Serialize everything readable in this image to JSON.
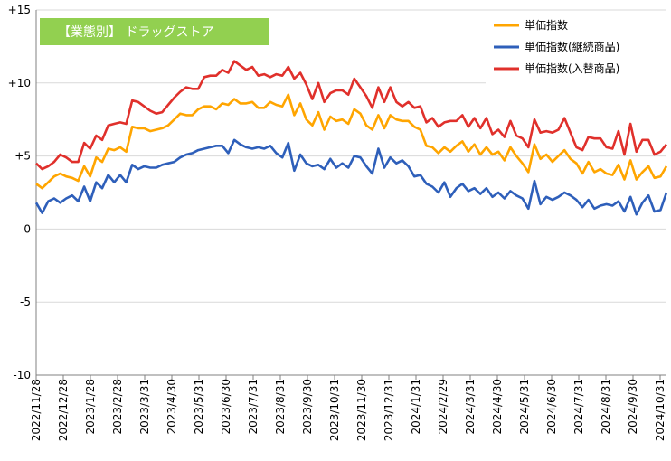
{
  "chart_data": {
    "type": "line",
    "title": "【業態別】 ドラッグストア",
    "title_box_color": "#92d050",
    "ylim": [
      -10,
      15
    ],
    "yticks": [
      -10,
      -5,
      0,
      5,
      10,
      15
    ],
    "ytick_labels": [
      "-10",
      "-5",
      "0",
      "+5",
      "+10",
      "+15"
    ],
    "xtick_labels": [
      "2022/11/28",
      "2022/12/28",
      "2023/1/28",
      "2023/2/28",
      "2023/3/31",
      "2023/4/30",
      "2023/5/31",
      "2023/6/30",
      "2023/7/31",
      "2023/8/31",
      "2023/9/30",
      "2023/10/31",
      "2023/11/30",
      "2023/12/31",
      "2024/1/31",
      "2024/2/29",
      "2024/3/31",
      "2024/4/30",
      "2024/5/31",
      "2024/6/30",
      "2024/7/31",
      "2024/8/31",
      "2024/9/30",
      "2024/10/31"
    ],
    "grid": "horizontal",
    "legend_position": "top-right",
    "series": [
      {
        "name": "単価指数",
        "color": "#ffa500",
        "values": [
          3.1,
          2.8,
          3.2,
          3.6,
          3.8,
          3.6,
          3.5,
          3.3,
          4.3,
          3.6,
          4.9,
          4.6,
          5.5,
          5.4,
          5.6,
          5.3,
          7.0,
          6.9,
          6.9,
          6.7,
          6.8,
          6.9,
          7.1,
          7.5,
          7.9,
          7.8,
          7.8,
          8.2,
          8.4,
          8.4,
          8.2,
          8.6,
          8.5,
          8.9,
          8.6,
          8.6,
          8.7,
          8.3,
          8.3,
          8.7,
          8.5,
          8.4,
          9.2,
          7.8,
          8.6,
          7.5,
          7.1,
          8.0,
          6.8,
          7.7,
          7.4,
          7.5,
          7.2,
          8.2,
          7.9,
          7.1,
          6.8,
          7.8,
          6.9,
          7.8,
          7.5,
          7.4,
          7.4,
          7.0,
          6.8,
          5.7,
          5.6,
          5.2,
          5.6,
          5.3,
          5.7,
          6.0,
          5.3,
          5.8,
          5.1,
          5.6,
          5.1,
          5.3,
          4.7,
          5.6,
          5.0,
          4.5,
          3.9,
          5.8,
          4.8,
          5.1,
          4.6,
          5.0,
          5.4,
          4.8,
          4.5,
          3.8,
          4.6,
          3.9,
          4.1,
          3.8,
          3.7,
          4.4,
          3.4,
          4.7,
          3.4,
          3.9,
          4.3,
          3.5,
          3.6,
          4.3
        ]
      },
      {
        "name": "単価指数(継続商品)",
        "color": "#2e5fba",
        "values": [
          1.8,
          1.1,
          1.9,
          2.1,
          1.8,
          2.1,
          2.3,
          1.9,
          2.9,
          1.9,
          3.2,
          2.8,
          3.7,
          3.2,
          3.7,
          3.2,
          4.4,
          4.1,
          4.3,
          4.2,
          4.2,
          4.4,
          4.5,
          4.6,
          4.9,
          5.1,
          5.2,
          5.4,
          5.5,
          5.6,
          5.7,
          5.7,
          5.2,
          6.1,
          5.8,
          5.6,
          5.5,
          5.6,
          5.5,
          5.7,
          5.2,
          4.9,
          5.9,
          4.0,
          5.1,
          4.5,
          4.3,
          4.4,
          4.1,
          4.8,
          4.2,
          4.5,
          4.2,
          5.0,
          4.9,
          4.3,
          3.8,
          5.5,
          4.2,
          4.9,
          4.5,
          4.7,
          4.3,
          3.6,
          3.7,
          3.1,
          2.9,
          2.5,
          3.2,
          2.2,
          2.8,
          3.1,
          2.6,
          2.8,
          2.4,
          2.8,
          2.2,
          2.5,
          2.1,
          2.6,
          2.3,
          2.1,
          1.4,
          3.3,
          1.7,
          2.2,
          2.0,
          2.2,
          2.5,
          2.3,
          2.0,
          1.5,
          2.0,
          1.4,
          1.6,
          1.7,
          1.6,
          1.9,
          1.2,
          2.2,
          1.0,
          1.8,
          2.3,
          1.2,
          1.3,
          2.5
        ]
      },
      {
        "name": "単価指数(入替商品)",
        "color": "#e0302b",
        "values": [
          4.5,
          4.1,
          4.3,
          4.6,
          5.1,
          4.9,
          4.6,
          4.6,
          5.9,
          5.5,
          6.4,
          6.1,
          7.1,
          7.2,
          7.3,
          7.2,
          8.8,
          8.7,
          8.4,
          8.1,
          7.9,
          8.0,
          8.5,
          9.0,
          9.4,
          9.7,
          9.6,
          9.6,
          10.4,
          10.5,
          10.5,
          10.9,
          10.7,
          11.5,
          11.2,
          10.9,
          11.1,
          10.5,
          10.6,
          10.4,
          10.6,
          10.5,
          11.1,
          10.3,
          10.7,
          9.9,
          8.9,
          10.0,
          8.7,
          9.3,
          9.5,
          9.5,
          9.2,
          10.3,
          9.7,
          9.1,
          8.3,
          9.7,
          8.7,
          9.7,
          8.7,
          8.4,
          8.7,
          8.3,
          8.4,
          7.3,
          7.6,
          7.0,
          7.3,
          7.4,
          7.4,
          7.8,
          7.0,
          7.6,
          6.9,
          7.6,
          6.5,
          6.8,
          6.3,
          7.4,
          6.4,
          6.2,
          5.6,
          7.5,
          6.6,
          6.7,
          6.6,
          6.8,
          7.6,
          6.6,
          5.6,
          5.4,
          6.3,
          6.2,
          6.2,
          5.6,
          5.5,
          6.7,
          5.1,
          7.2,
          5.3,
          6.1,
          6.1,
          5.1,
          5.3,
          5.8
        ]
      }
    ]
  }
}
